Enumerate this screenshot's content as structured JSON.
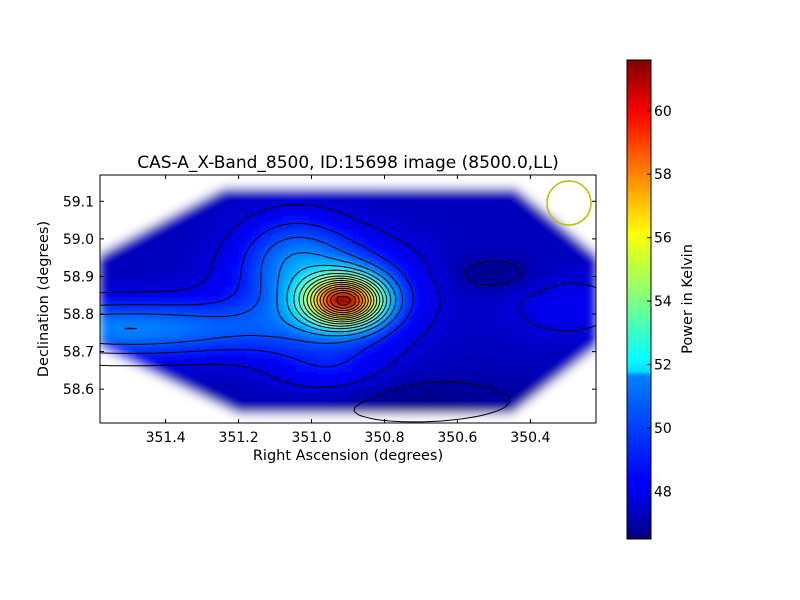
{
  "chart_data": {
    "type": "heatmap",
    "title": "CAS-A_X-Band_8500, ID:15698 image (8500.0,LL)",
    "xlabel": "Right Ascension (degrees)",
    "ylabel": "Declination (degrees)",
    "xlim": [
      351.58,
      350.22
    ],
    "ylim": [
      58.51,
      59.17
    ],
    "x_ticks": [
      351.4,
      351.2,
      351.0,
      350.8,
      350.6,
      350.4
    ],
    "x_tick_labels": [
      "351.4",
      "351.2",
      "351.0",
      "350.8",
      "350.6",
      "350.4"
    ],
    "y_ticks": [
      58.6,
      58.7,
      58.8,
      58.9,
      59.0,
      59.1
    ],
    "y_tick_labels": [
      "58.6",
      "58.7",
      "58.8",
      "58.9",
      "59.0",
      "59.1"
    ],
    "colormap": "jet",
    "colorbar": {
      "label": "Power in Kelvin",
      "range": [
        46.5,
        61.6
      ],
      "ticks": [
        48,
        50,
        52,
        54,
        56,
        58,
        60
      ],
      "tick_labels": [
        "48",
        "50",
        "52",
        "54",
        "56",
        "58",
        "60"
      ]
    },
    "peak": {
      "ra": 350.91,
      "dec": 58.835,
      "value": 61.5
    },
    "secondary_minimum": {
      "ra": 350.5,
      "dec": 58.905,
      "value": 46.6
    },
    "contours": true,
    "beam_marker": {
      "ra": 350.27,
      "dec": 59.1,
      "color": "#bfbf00"
    },
    "grid": false
  }
}
